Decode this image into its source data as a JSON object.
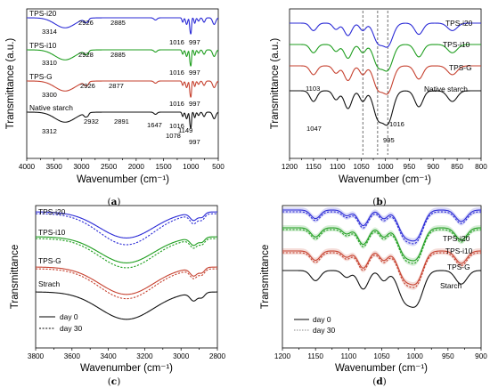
{
  "chart_data": [
    {
      "type": "line",
      "panel_label": "a",
      "ylabel": "Transmittance (a.u.)",
      "xlabel": "Wavenumber (cm⁻¹)",
      "xlim": [
        4000,
        500
      ],
      "xticks": [
        "4000",
        "3500",
        "3000",
        "2500",
        "2000",
        "1500",
        "1000",
        "500"
      ],
      "colors": {
        "TPS-i20": "#2b2bd6",
        "TPS-i10": "#1f9e1f",
        "TPS-G": "#c6412f",
        "Native starch": "#111111"
      },
      "series": [
        {
          "name": "TPS-i20",
          "annotations": [
            "3314",
            "2926",
            "2885",
            "1016",
            "997"
          ]
        },
        {
          "name": "TPS-i10",
          "annotations": [
            "3310",
            "2928",
            "2885",
            "1016",
            "997"
          ]
        },
        {
          "name": "TPS-G",
          "annotations": [
            "3300",
            "2926",
            "2877",
            "1016",
            "997"
          ]
        },
        {
          "name": "Native starch",
          "annotations": [
            "3312",
            "2932",
            "2891",
            "1647",
            "1149",
            "1078",
            "1016",
            "997"
          ]
        }
      ]
    },
    {
      "type": "line",
      "panel_label": "b",
      "ylabel": "Transmittance (a.u.)",
      "xlabel": "Wavenumber (cm⁻¹)",
      "xlim": [
        1200,
        800
      ],
      "xticks": [
        "1200",
        "1150",
        "1100",
        "1050",
        "1000",
        "950",
        "900",
        "850",
        "800"
      ],
      "reference_lines": [
        1047,
        1016,
        995
      ],
      "series": [
        {
          "name": "TPS-i20"
        },
        {
          "name": "TPS-i10"
        },
        {
          "name": "TPS-G"
        },
        {
          "name": "Native starch"
        }
      ],
      "annotations": [
        "1103",
        "1047",
        "1016",
        "995"
      ]
    },
    {
      "type": "line",
      "panel_label": "c",
      "ylabel": "Transmittance",
      "xlabel": "Wavenumber (cm⁻¹)",
      "xlim": [
        3800,
        2800
      ],
      "xticks": [
        "3800",
        "3600",
        "3400",
        "3200",
        "3000",
        "2800"
      ],
      "series": [
        {
          "name": "TPS-i20"
        },
        {
          "name": "TPS-i10"
        },
        {
          "name": "TPS-G"
        },
        {
          "name": "Strach"
        }
      ],
      "legend": {
        "solid": "day 0",
        "dashed": "day 30",
        "position": "bottom-left"
      }
    },
    {
      "type": "line",
      "panel_label": "d",
      "ylabel": "Transmittance",
      "xlabel": "Wavenumber (cm⁻¹)",
      "xlim": [
        1200,
        900
      ],
      "xticks": [
        "1200",
        "1150",
        "1100",
        "1050",
        "1000",
        "950",
        "900"
      ],
      "series": [
        {
          "name": "TPS-i20"
        },
        {
          "name": "TPS-i10"
        },
        {
          "name": "TPS-G"
        },
        {
          "name": "Starch"
        }
      ],
      "legend": {
        "solid": "day 0",
        "dashed": "day 30",
        "position": "bottom-left"
      }
    }
  ]
}
